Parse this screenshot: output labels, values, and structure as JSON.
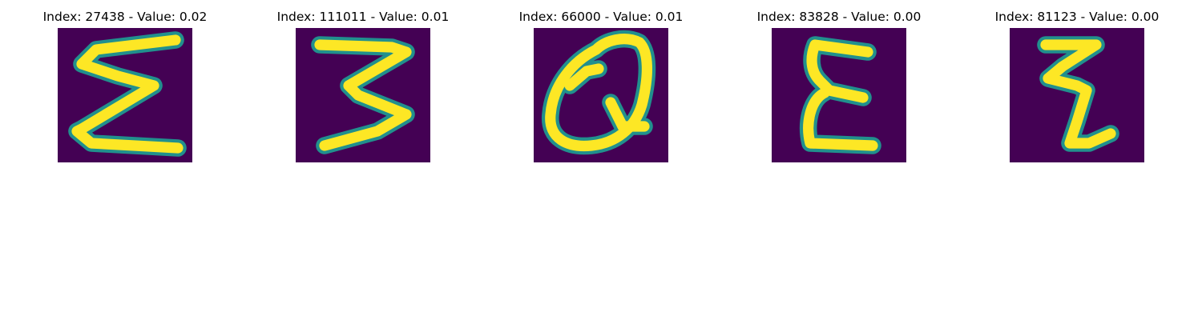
{
  "colors": {
    "background": "#440154",
    "edge": "#21908d",
    "stroke": "#fde725"
  },
  "panels": [
    {
      "title": "Index: 27438 - Value: 0.02",
      "glyph": "sigma-like"
    },
    {
      "title": "Index: 111011 - Value: 0.01",
      "glyph": "three"
    },
    {
      "title": "Index: 66000 - Value: 0.01",
      "glyph": "q"
    },
    {
      "title": "Index: 83828 - Value: 0.00",
      "glyph": "epsilon"
    },
    {
      "title": "Index: 81123 - Value: 0.00",
      "glyph": "z-like"
    }
  ]
}
